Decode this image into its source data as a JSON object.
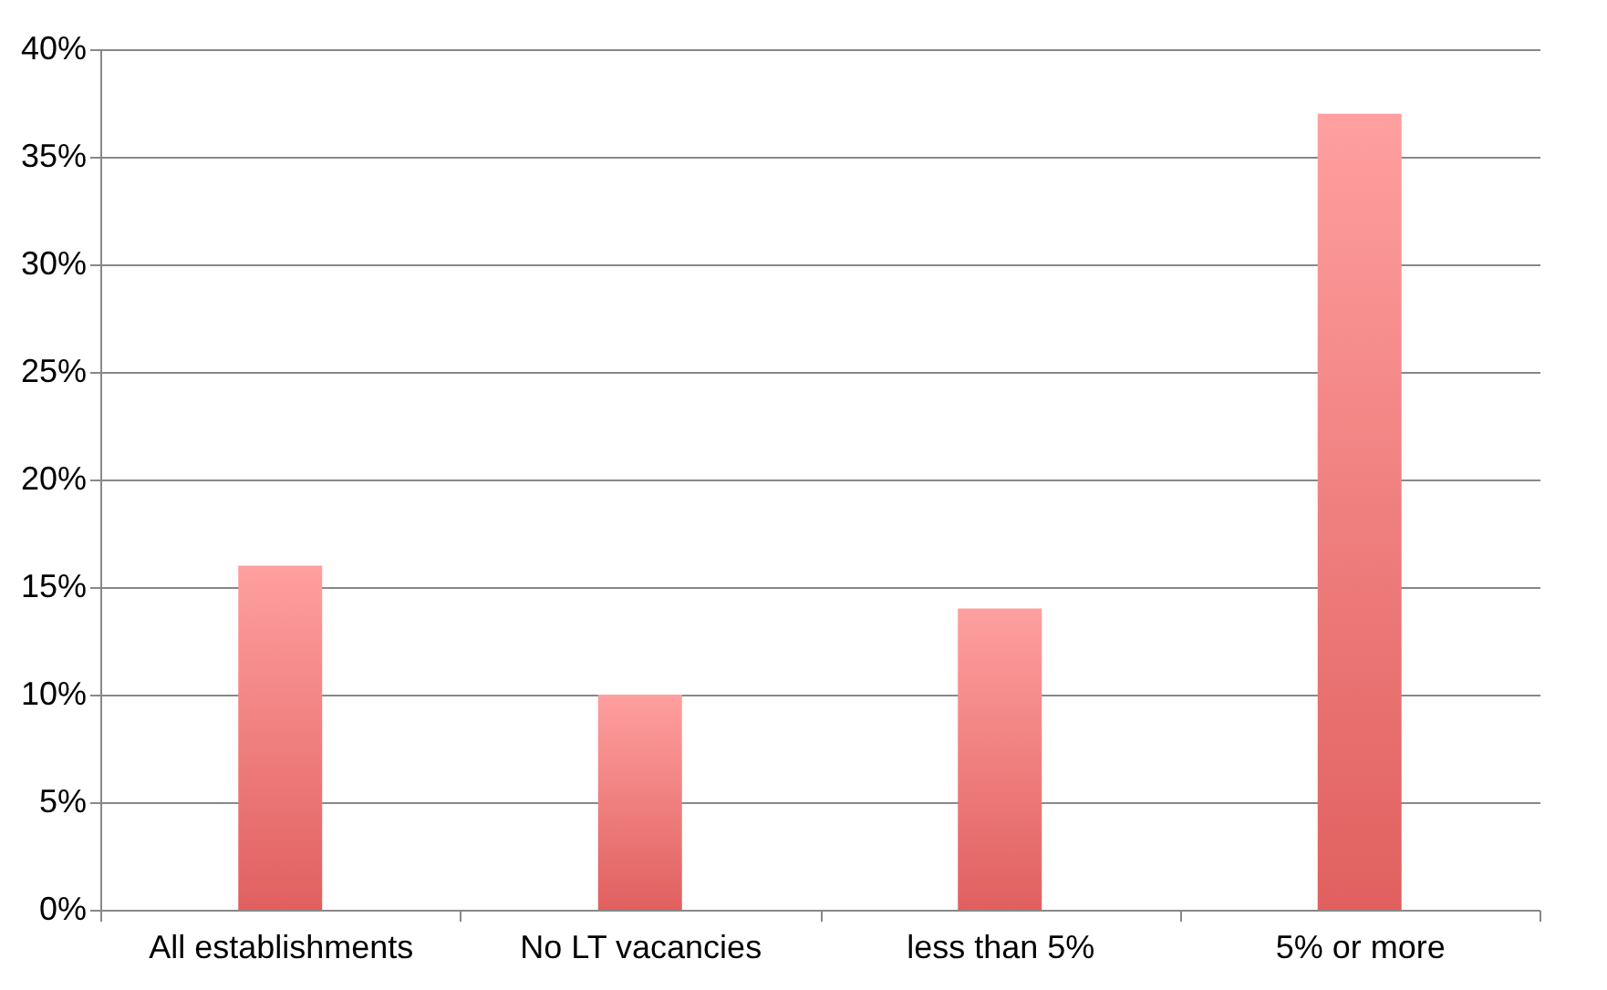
{
  "chart_data": {
    "type": "bar",
    "categories": [
      "All establishments",
      "No LT vacancies",
      "less than 5%",
      "5% or more"
    ],
    "values": [
      16,
      10,
      14,
      37
    ],
    "color": "#e0605f",
    "ylim": [
      0,
      40
    ],
    "yticks": [
      {
        "value": 0,
        "label": "0%"
      },
      {
        "value": 5,
        "label": "5%"
      },
      {
        "value": 10,
        "label": "10%"
      },
      {
        "value": 15,
        "label": "15%"
      },
      {
        "value": 20,
        "label": "20%"
      },
      {
        "value": 25,
        "label": "25%"
      },
      {
        "value": 30,
        "label": "30%"
      },
      {
        "value": 35,
        "label": "35%"
      },
      {
        "value": 40,
        "label": "40%"
      }
    ],
    "grid": "y"
  }
}
